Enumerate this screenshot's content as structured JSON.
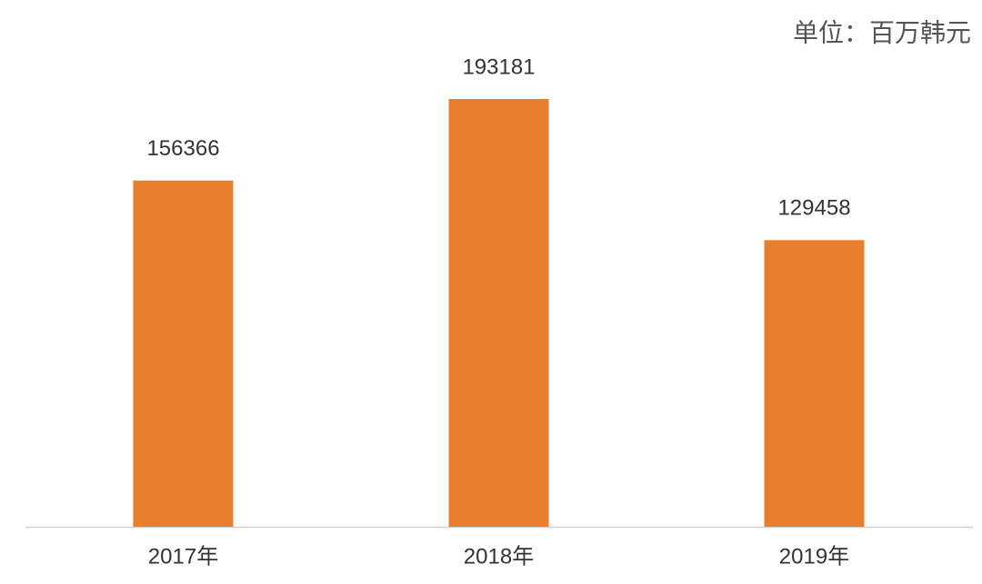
{
  "chart_data": {
    "type": "bar",
    "unit_note": "单位：百万韩元",
    "categories": [
      "2017年",
      "2018年",
      "2019年"
    ],
    "values": [
      156366,
      193181,
      129458
    ],
    "color": "#e97e2e"
  }
}
